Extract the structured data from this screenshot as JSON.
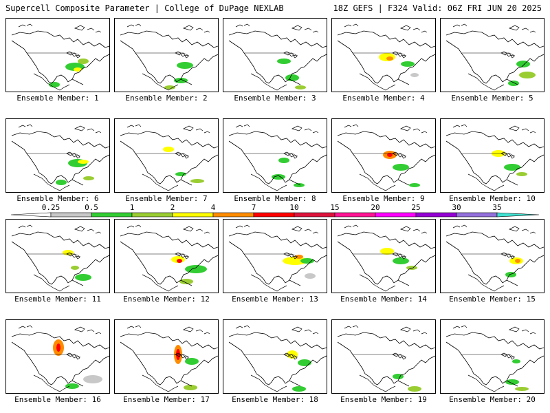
{
  "header": {
    "left_title": "Supercell Composite Parameter | College of DuPage NEXLAB",
    "right_title": "18Z GEFS | F324 Valid: 06Z FRI JUN 20 2025"
  },
  "colorbar": {
    "labels": [
      "0.25",
      "0.5",
      "1",
      "2",
      "4",
      "7",
      "10",
      "15",
      "20",
      "25",
      "30",
      "35"
    ],
    "colors": [
      "#c8c8c8",
      "#32cd32",
      "#9acd32",
      "#ffff00",
      "#ff8c00",
      "#ff0000",
      "#dc143c",
      "#ff1493",
      "#ff00ff",
      "#9400d3",
      "#9370db",
      "#40e0d0"
    ]
  },
  "panels": [
    {
      "caption": "Ensemble Member: 1"
    },
    {
      "caption": "Ensemble Member: 2"
    },
    {
      "caption": "Ensemble Member: 3"
    },
    {
      "caption": "Ensemble Member: 4"
    },
    {
      "caption": "Ensemble Member: 5"
    },
    {
      "caption": "Ensemble Member: 6"
    },
    {
      "caption": "Ensemble Member: 7"
    },
    {
      "caption": "Ensemble Member: 8"
    },
    {
      "caption": "Ensemble Member: 9"
    },
    {
      "caption": "Ensemble Member: 10"
    },
    {
      "caption": "Ensemble Member: 11"
    },
    {
      "caption": "Ensemble Member: 12"
    },
    {
      "caption": "Ensemble Member: 13"
    },
    {
      "caption": "Ensemble Member: 14"
    },
    {
      "caption": "Ensemble Member: 15"
    },
    {
      "caption": "Ensemble Member: 16"
    },
    {
      "caption": "Ensemble Member: 17"
    },
    {
      "caption": "Ensemble Member: 18"
    },
    {
      "caption": "Ensemble Member: 19"
    },
    {
      "caption": "Ensemble Member: 20"
    }
  ]
}
